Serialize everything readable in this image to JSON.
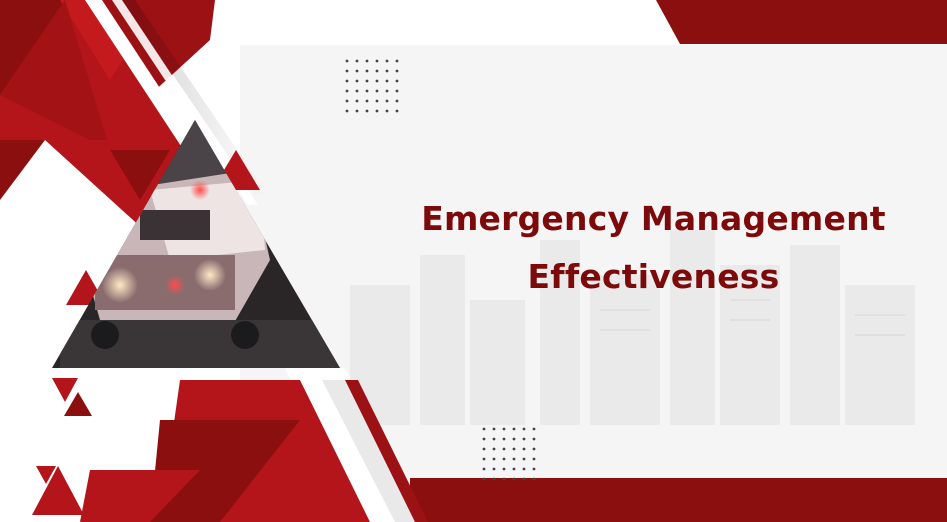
{
  "slide": {
    "title_line1": "Emergency Management",
    "title_line2": "Effectiveness",
    "image_subject": "ambulance-photo"
  },
  "colors": {
    "title": "#7d0a0a",
    "dark_red": "#8c0f0f",
    "red": "#b3151a",
    "mid_red": "#a31215",
    "light_gray": "#f3f3f3",
    "skyline_gray": "#ececec"
  }
}
